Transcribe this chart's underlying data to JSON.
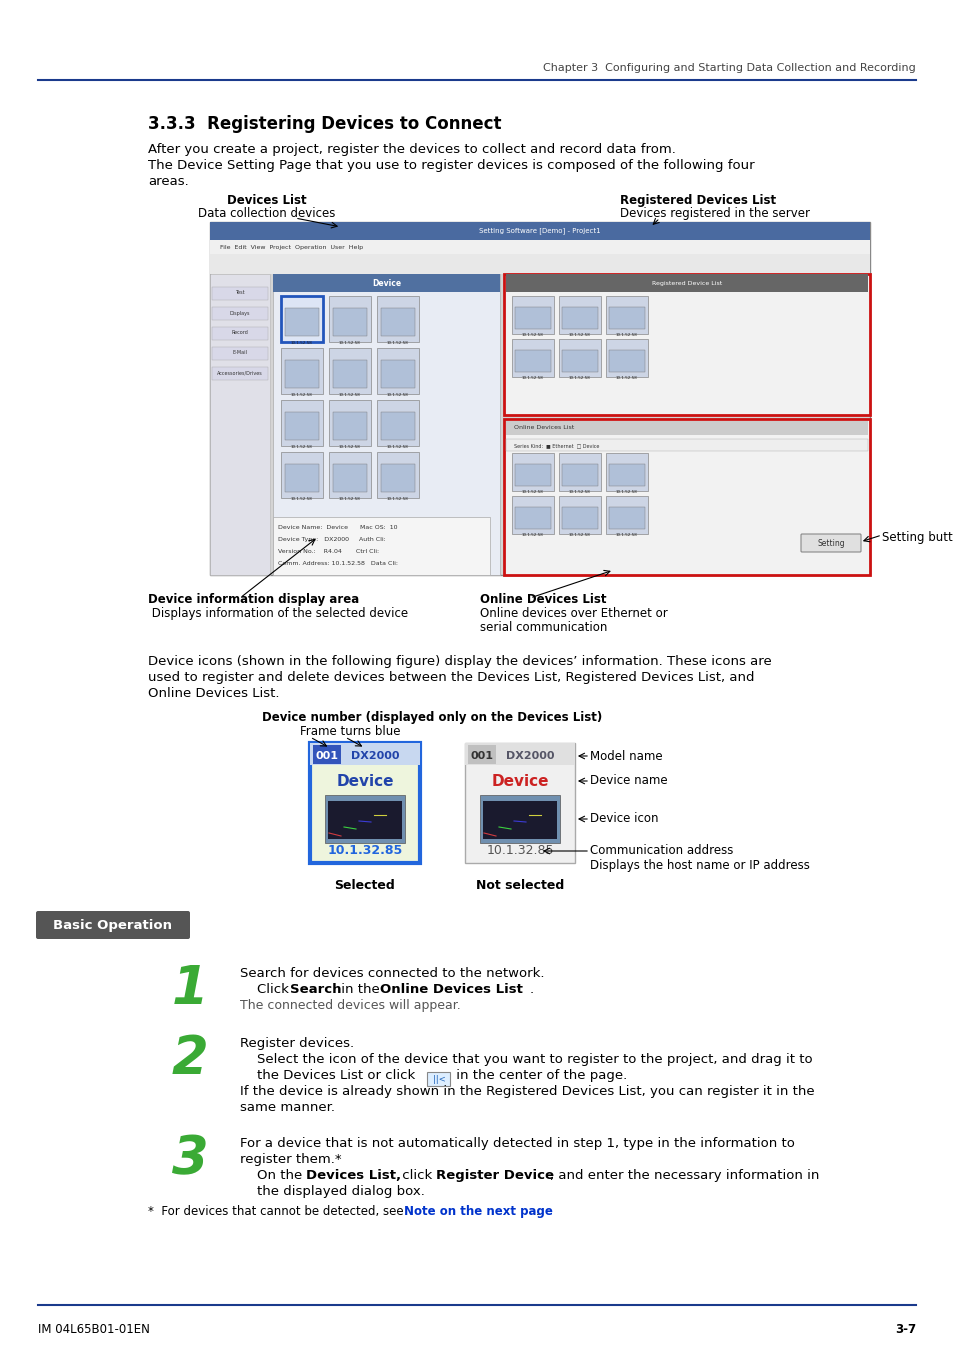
{
  "page_header": "Chapter 3  Configuring and Starting Data Collection and Recording",
  "section_title": "3.3.3  Registering Devices to Connect",
  "intro_line1": "After you create a project, register the devices to collect and record data from.",
  "intro_line2": "The Device Setting Page that you use to register devices is composed of the following four",
  "intro_line3": "areas.",
  "label_devices_list_line1": "Devices List",
  "label_devices_list_line2": "Data collection devices",
  "label_registered_line1": "Registered Devices List",
  "label_registered_line2": "Devices registered in the server",
  "label_device_info_line1": "Device information display area",
  "label_device_info_line2": " Displays information of the selected device",
  "label_online_line1": "Online Devices List",
  "label_online_line2": "Online devices over Ethernet or",
  "label_online_line3": "serial communication",
  "label_setting_button": "Setting button",
  "para_line1": "Device icons (shown in the following figure) display the devices’ information. These icons are",
  "para_line2": "used to register and delete devices between the Devices List, Registered Devices List, and",
  "para_line3": "Online Devices List.",
  "diag_title": "Device number (displayed only on the Devices List)",
  "diag_subtitle": "Frame turns blue",
  "label_model_name": "Model name",
  "label_device_name": "Device name",
  "label_device_icon": "Device icon",
  "label_comm_addr1": "Communication address",
  "label_comm_addr2": "Displays the host name or IP address",
  "label_selected": "Selected",
  "label_not_selected": "Not selected",
  "basic_operation_label": "Basic Operation",
  "step_number_color": "#3aaa35",
  "step1_line1": "Search for devices connected to the network.",
  "step1_line2_pre": "    Click ",
  "step1_line2_bold1": "Search",
  "step1_line2_mid": " in the ",
  "step1_line2_bold2": "Online Devices List",
  "step1_line2_end": ".",
  "step1_line3": "The connected devices will appear.",
  "step2_line1": "Register devices.",
  "step2_line2": "    Select the icon of the device that you want to register to the project, and drag it to",
  "step2_line3_pre": "    the Devices List or click ",
  "step2_line3_end": " in the center of the page.",
  "step2_line4": "If the device is already shown in the Registered Devices List, you can register it in the",
  "step2_line5": "same manner.",
  "step3_line1": "For a device that is not automatically detected in step 1, type in the information to",
  "step3_line2": "register them.*",
  "step3_line3_pre": "    On the ",
  "step3_line3_bold1": "Devices List,",
  "step3_line3_mid": " click ",
  "step3_line3_bold2": "Register Device",
  "step3_line3_end": ", and enter the necessary information in",
  "step3_line4": "    the displayed dialog box.",
  "footnote_pre": "*  For devices that cannot be detected, see ",
  "footnote_link": "Note on the next page",
  "footnote_end": ".",
  "footer_left": "IM 04L65B01-01EN",
  "footer_right": "3-7",
  "bg_color": "#ffffff",
  "header_line_color": "#1a3a8c",
  "footer_line_color": "#1a3a8c",
  "header_text_color": "#444444",
  "body_text_color": "#000000",
  "basic_op_bg": "#5a5a5a",
  "link_color": "#0033cc",
  "arrow_color": "#000000"
}
